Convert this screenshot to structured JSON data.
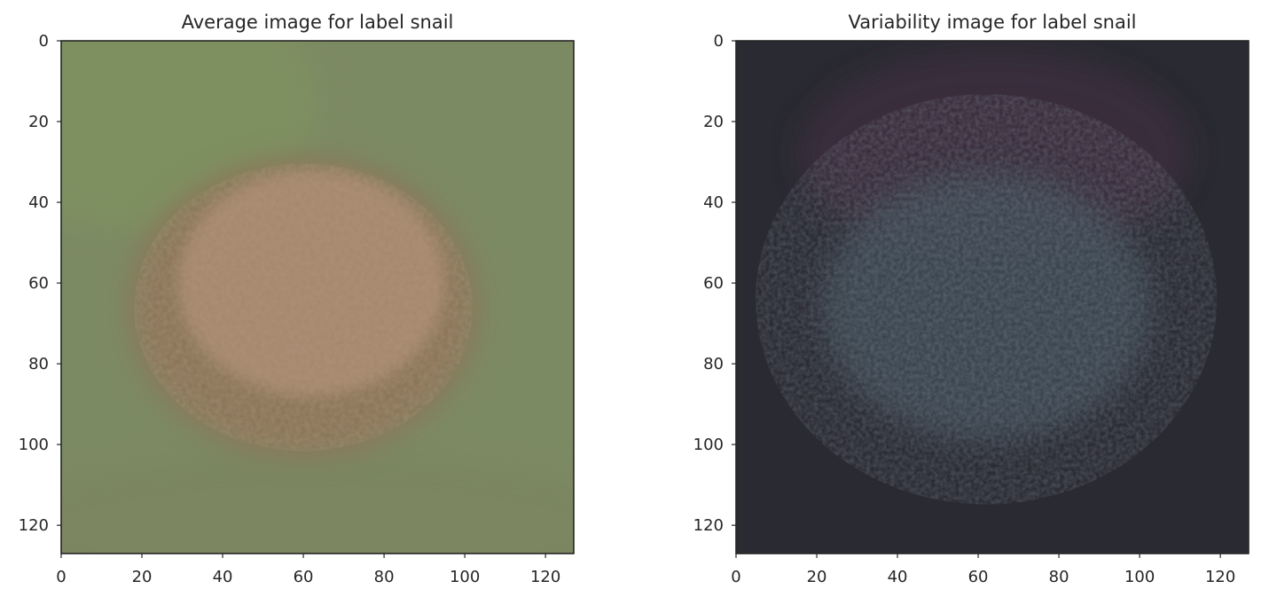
{
  "chart_data": [
    {
      "type": "heatmap",
      "title": "Average image for label snail",
      "xlabel": "",
      "ylabel": "",
      "xlim": [
        0,
        127
      ],
      "ylim": [
        127,
        0
      ],
      "xticks": [
        0,
        20,
        40,
        60,
        80,
        100,
        120
      ],
      "yticks": [
        0,
        20,
        40,
        60,
        80,
        100,
        120
      ],
      "grid": false,
      "colors": {
        "background": "#7c8a63",
        "blob_center": "#a88a70",
        "blob_edge": "#8c7558",
        "top_left": "#7f9261",
        "bottom": "#7c8660"
      }
    },
    {
      "type": "heatmap",
      "title": "Variability image for label snail",
      "xlabel": "",
      "ylabel": "",
      "xlim": [
        0,
        127
      ],
      "ylim": [
        127,
        0
      ],
      "xticks": [
        0,
        20,
        40,
        60,
        80,
        100,
        120
      ],
      "yticks": [
        0,
        20,
        40,
        60,
        80,
        100,
        120
      ],
      "grid": false,
      "colors": {
        "background": "#2a2a33",
        "center": "#3e4a52",
        "upper_glow": "#3a2f3d",
        "edge": "#26262c"
      }
    }
  ]
}
